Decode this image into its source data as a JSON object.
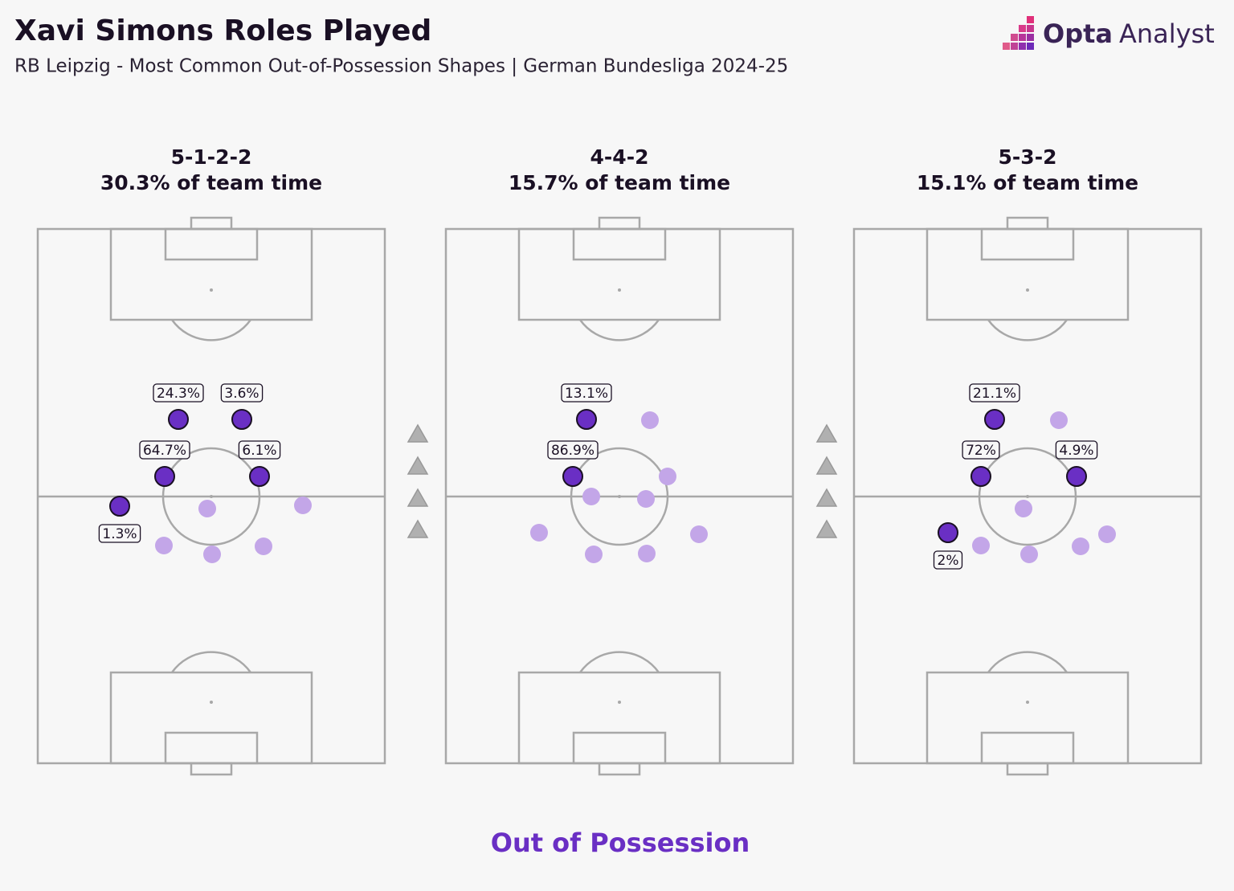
{
  "header": {
    "title": "Xavi Simons Roles Played",
    "subtitle": "RB Leipzig - Most Common Out-of-Possession Shapes | German Bundesliga 2024-25",
    "brand": {
      "bold": "Opta",
      "light": "Analyst"
    }
  },
  "pitches": [
    {
      "formation": "5-1-2-2",
      "share": "30.3% of team time",
      "roles": [
        {
          "label": "24.3%"
        },
        {
          "label": "3.6%"
        },
        {
          "label": "64.7%"
        },
        {
          "label": "6.1%"
        },
        {
          "label": "1.3%"
        }
      ]
    },
    {
      "formation": "4-4-2",
      "share": "15.7% of team time",
      "roles": [
        {
          "label": "13.1%"
        },
        {
          "label": "86.9%"
        }
      ]
    },
    {
      "formation": "5-3-2",
      "share": "15.1% of team time",
      "roles": [
        {
          "label": "21.1%"
        },
        {
          "label": "72%"
        },
        {
          "label": "4.9%"
        },
        {
          "label": "2%"
        }
      ]
    }
  ],
  "footer": "Out of Possession"
}
